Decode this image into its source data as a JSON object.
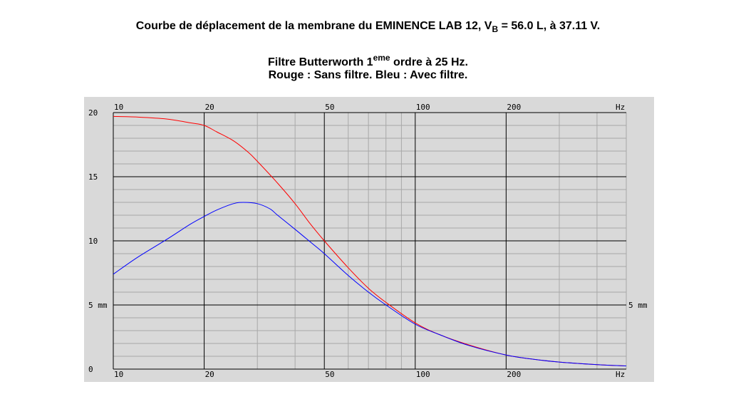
{
  "header": {
    "line1_main": "Courbe de déplacement de la membrane du EMINENCE LAB 12, V",
    "line1_sub": "B",
    "line1_tail": " = 56.0 L, à 37.11 V.",
    "line2_main": "Filtre Butterworth 1",
    "line2_sup": "eme",
    "line2_tail": " ordre à 25 Hz.",
    "line3": "Rouge : Sans filtre. Bleu : Avec filtre."
  },
  "colors": {
    "panel": "#d9d9d9",
    "grid_major": "#000000",
    "grid_minor": "#a8a8a8",
    "red": "#ff0000",
    "blue": "#0000ff"
  },
  "chart_data": {
    "type": "line",
    "x_scale": "log",
    "xlim": [
      10,
      500
    ],
    "ylim": [
      0,
      20
    ],
    "x_ticks": [
      {
        "value": 10,
        "label": "10"
      },
      {
        "value": 20,
        "label": "20"
      },
      {
        "value": 50,
        "label": "50"
      },
      {
        "value": 100,
        "label": "100"
      },
      {
        "value": 200,
        "label": "200"
      }
    ],
    "x_unit_label": "Hz",
    "y_ticks": [
      {
        "value": 20,
        "label": "20"
      },
      {
        "value": 15,
        "label": "15"
      },
      {
        "value": 10,
        "label": "10"
      },
      {
        "value": 5,
        "label": "5 mm"
      },
      {
        "value": 0,
        "label": "0"
      }
    ],
    "y_right_label": {
      "value": 5,
      "label": "5 mm"
    },
    "grid": true,
    "series": [
      {
        "color": "red",
        "x": [
          10,
          12,
          15,
          18,
          20,
          22,
          25,
          28,
          30,
          35,
          40,
          45,
          50,
          60,
          70,
          80,
          100,
          120,
          150,
          200,
          250,
          300,
          400,
          500
        ],
        "y": [
          19.7,
          19.65,
          19.5,
          19.2,
          19.0,
          18.5,
          17.8,
          16.9,
          16.2,
          14.5,
          12.9,
          11.3,
          10.0,
          7.9,
          6.3,
          5.2,
          3.6,
          2.7,
          1.9,
          1.1,
          0.75,
          0.55,
          0.35,
          0.25
        ]
      },
      {
        "color": "blue",
        "x": [
          10,
          12,
          15,
          18,
          20,
          22,
          25,
          27,
          30,
          33,
          35,
          40,
          45,
          50,
          60,
          70,
          80,
          100,
          120,
          150,
          200,
          250,
          300,
          400,
          500
        ],
        "y": [
          7.4,
          8.7,
          10.1,
          11.3,
          11.9,
          12.4,
          12.9,
          13.0,
          12.9,
          12.5,
          12.0,
          10.9,
          9.9,
          9.0,
          7.3,
          6.0,
          5.0,
          3.5,
          2.7,
          1.85,
          1.1,
          0.75,
          0.55,
          0.35,
          0.25
        ]
      }
    ]
  }
}
